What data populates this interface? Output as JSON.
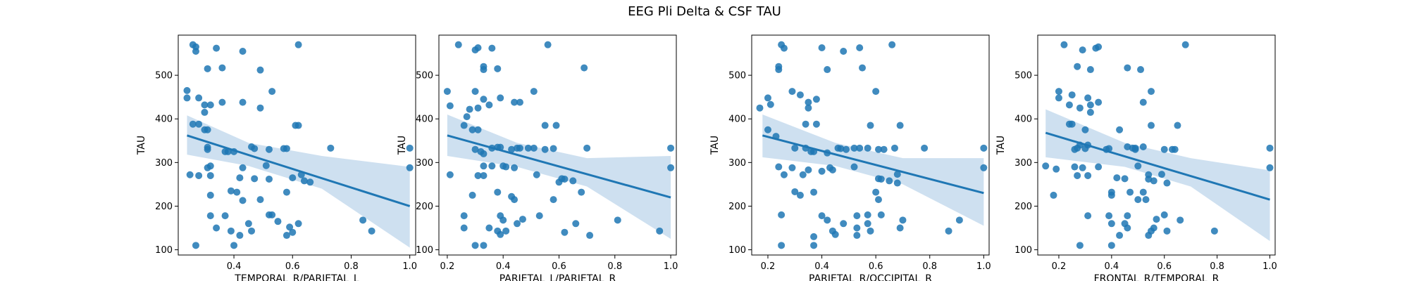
{
  "title": "EEG Pli Delta & CSF TAU",
  "colors": {
    "points": "#1f77b4",
    "line": "#1f77b4",
    "band": "#aecbe6"
  },
  "chart_data": [
    {
      "type": "scatter",
      "xlabel": "TEMPORAL_R/PARIETAL_L",
      "ylabel": "TAU",
      "xlim": [
        0.21,
        1.02
      ],
      "ylim": [
        88,
        592
      ],
      "xticks": [
        0.4,
        0.6,
        0.8,
        1.0
      ],
      "yticks": [
        100,
        200,
        300,
        400,
        500
      ],
      "regression": {
        "x": [
          0.24,
          1.0
        ],
        "y": [
          362,
          200
        ]
      },
      "ci_band": {
        "x": [
          0.24,
          0.45,
          0.7,
          1.0
        ],
        "upper": [
          408,
          345,
          315,
          290
        ],
        "lower": [
          318,
          292,
          240,
          105
        ]
      },
      "points": [
        [
          0.26,
          570
        ],
        [
          0.27,
          565
        ],
        [
          0.27,
          555
        ],
        [
          0.34,
          562
        ],
        [
          0.43,
          555
        ],
        [
          0.62,
          570
        ],
        [
          0.24,
          465
        ],
        [
          0.24,
          448
        ],
        [
          0.28,
          448
        ],
        [
          0.26,
          388
        ],
        [
          0.28,
          388
        ],
        [
          0.31,
          515
        ],
        [
          0.36,
          517
        ],
        [
          0.49,
          512
        ],
        [
          0.53,
          463
        ],
        [
          0.3,
          432
        ],
        [
          0.32,
          432
        ],
        [
          0.3,
          415
        ],
        [
          0.36,
          438
        ],
        [
          0.43,
          438
        ],
        [
          0.49,
          425
        ],
        [
          0.3,
          375
        ],
        [
          0.31,
          375
        ],
        [
          0.61,
          385
        ],
        [
          0.62,
          385
        ],
        [
          0.31,
          335
        ],
        [
          0.31,
          330
        ],
        [
          0.37,
          325
        ],
        [
          0.38,
          325
        ],
        [
          0.4,
          325
        ],
        [
          0.46,
          336
        ],
        [
          0.47,
          332
        ],
        [
          0.52,
          330
        ],
        [
          0.57,
          332
        ],
        [
          0.58,
          332
        ],
        [
          0.73,
          333
        ],
        [
          1.0,
          333
        ],
        [
          0.31,
          288
        ],
        [
          0.32,
          292
        ],
        [
          0.43,
          288
        ],
        [
          0.51,
          293
        ],
        [
          0.25,
          272
        ],
        [
          0.28,
          270
        ],
        [
          0.32,
          270
        ],
        [
          0.42,
          265
        ],
        [
          0.47,
          263
        ],
        [
          0.52,
          262
        ],
        [
          0.6,
          265
        ],
        [
          0.63,
          272
        ],
        [
          0.64,
          258
        ],
        [
          0.66,
          255
        ],
        [
          1.0,
          288
        ],
        [
          0.41,
          232
        ],
        [
          0.39,
          235
        ],
        [
          0.32,
          225
        ],
        [
          0.43,
          213
        ],
        [
          0.49,
          215
        ],
        [
          0.58,
          232
        ],
        [
          0.53,
          180
        ],
        [
          0.52,
          180
        ],
        [
          0.32,
          178
        ],
        [
          0.37,
          178
        ],
        [
          0.45,
          160
        ],
        [
          0.46,
          143
        ],
        [
          0.55,
          165
        ],
        [
          0.59,
          152
        ],
        [
          0.62,
          160
        ],
        [
          0.6,
          140
        ],
        [
          0.58,
          133
        ],
        [
          0.84,
          168
        ],
        [
          0.87,
          143
        ],
        [
          0.34,
          150
        ],
        [
          0.39,
          143
        ],
        [
          0.42,
          133
        ],
        [
          0.27,
          110
        ],
        [
          0.4,
          110
        ]
      ]
    },
    {
      "type": "scatter",
      "xlabel": "PARIETAL_L/PARIETAL_R",
      "ylabel": "TAU",
      "xlim": [
        0.17,
        1.02
      ],
      "ylim": [
        88,
        592
      ],
      "xticks": [
        0.2,
        0.4,
        0.6,
        0.8,
        1.0
      ],
      "yticks": [
        100,
        200,
        300,
        400,
        500
      ],
      "regression": {
        "x": [
          0.2,
          1.0
        ],
        "y": [
          362,
          220
        ]
      },
      "ci_band": {
        "x": [
          0.2,
          0.45,
          0.7,
          1.0
        ],
        "upper": [
          410,
          345,
          310,
          315
        ],
        "lower": [
          315,
          290,
          245,
          125
        ]
      },
      "points": [
        [
          0.24,
          570
        ],
        [
          0.3,
          558
        ],
        [
          0.31,
          563
        ],
        [
          0.36,
          562
        ],
        [
          0.56,
          570
        ],
        [
          0.33,
          520
        ],
        [
          0.33,
          513
        ],
        [
          0.38,
          515
        ],
        [
          0.69,
          517
        ],
        [
          0.2,
          463
        ],
        [
          0.3,
          463
        ],
        [
          0.51,
          463
        ],
        [
          0.21,
          430
        ],
        [
          0.28,
          422
        ],
        [
          0.31,
          425
        ],
        [
          0.33,
          445
        ],
        [
          0.35,
          432
        ],
        [
          0.39,
          448
        ],
        [
          0.44,
          438
        ],
        [
          0.46,
          438
        ],
        [
          0.27,
          405
        ],
        [
          0.26,
          385
        ],
        [
          0.29,
          375
        ],
        [
          0.31,
          375
        ],
        [
          0.55,
          385
        ],
        [
          0.59,
          385
        ],
        [
          0.3,
          330
        ],
        [
          0.32,
          325
        ],
        [
          0.33,
          320
        ],
        [
          0.36,
          333
        ],
        [
          0.38,
          335
        ],
        [
          0.39,
          335
        ],
        [
          0.43,
          330
        ],
        [
          0.45,
          333
        ],
        [
          0.46,
          333
        ],
        [
          0.49,
          333
        ],
        [
          0.51,
          333
        ],
        [
          0.55,
          330
        ],
        [
          0.58,
          332
        ],
        [
          0.7,
          333
        ],
        [
          1.0,
          333
        ],
        [
          0.33,
          292
        ],
        [
          0.36,
          292
        ],
        [
          0.4,
          292
        ],
        [
          0.41,
          290
        ],
        [
          0.44,
          288
        ],
        [
          0.52,
          272
        ],
        [
          0.61,
          263
        ],
        [
          0.62,
          262
        ],
        [
          0.6,
          255
        ],
        [
          0.65,
          258
        ],
        [
          0.21,
          272
        ],
        [
          0.31,
          270
        ],
        [
          0.33,
          270
        ],
        [
          0.29,
          225
        ],
        [
          0.38,
          232
        ],
        [
          0.43,
          222
        ],
        [
          0.44,
          215
        ],
        [
          0.58,
          215
        ],
        [
          0.68,
          232
        ],
        [
          1.0,
          288
        ],
        [
          0.26,
          178
        ],
        [
          0.39,
          178
        ],
        [
          0.4,
          168
        ],
        [
          0.47,
          170
        ],
        [
          0.53,
          178
        ],
        [
          0.81,
          168
        ],
        [
          0.26,
          150
        ],
        [
          0.35,
          150
        ],
        [
          0.45,
          160
        ],
        [
          0.66,
          160
        ],
        [
          0.38,
          143
        ],
        [
          0.39,
          135
        ],
        [
          0.41,
          143
        ],
        [
          0.62,
          140
        ],
        [
          0.71,
          133
        ],
        [
          0.96,
          143
        ],
        [
          0.3,
          110
        ],
        [
          0.33,
          110
        ]
      ]
    },
    {
      "type": "scatter",
      "xlabel": "PARIETAL_R/OCCIPITAL_R",
      "ylabel": "TAU",
      "xlim": [
        0.14,
        1.02
      ],
      "ylim": [
        88,
        592
      ],
      "xticks": [
        0.2,
        0.4,
        0.6,
        0.8,
        1.0
      ],
      "yticks": [
        100,
        200,
        300,
        400,
        500
      ],
      "regression": {
        "x": [
          0.18,
          1.0
        ],
        "y": [
          362,
          230
        ]
      },
      "ci_band": {
        "x": [
          0.18,
          0.45,
          0.7,
          1.0
        ],
        "upper": [
          410,
          345,
          310,
          310
        ],
        "lower": [
          312,
          292,
          250,
          155
        ]
      },
      "points": [
        [
          0.25,
          570
        ],
        [
          0.26,
          562
        ],
        [
          0.4,
          563
        ],
        [
          0.48,
          555
        ],
        [
          0.54,
          563
        ],
        [
          0.66,
          570
        ],
        [
          0.24,
          520
        ],
        [
          0.24,
          513
        ],
        [
          0.42,
          513
        ],
        [
          0.55,
          517
        ],
        [
          0.2,
          448
        ],
        [
          0.21,
          433
        ],
        [
          0.29,
          463
        ],
        [
          0.32,
          455
        ],
        [
          0.35,
          425
        ],
        [
          0.35,
          438
        ],
        [
          0.38,
          445
        ],
        [
          0.17,
          425
        ],
        [
          0.6,
          463
        ],
        [
          0.2,
          375
        ],
        [
          0.34,
          388
        ],
        [
          0.38,
          388
        ],
        [
          0.23,
          360
        ],
        [
          0.3,
          333
        ],
        [
          0.34,
          333
        ],
        [
          0.36,
          325
        ],
        [
          0.37,
          325
        ],
        [
          0.42,
          322
        ],
        [
          0.46,
          333
        ],
        [
          0.47,
          332
        ],
        [
          0.49,
          330
        ],
        [
          0.52,
          333
        ],
        [
          0.54,
          333
        ],
        [
          0.57,
          333
        ],
        [
          0.58,
          385
        ],
        [
          0.61,
          330
        ],
        [
          0.63,
          330
        ],
        [
          0.67,
          333
        ],
        [
          0.69,
          385
        ],
        [
          0.78,
          333
        ],
        [
          1.0,
          333
        ],
        [
          0.29,
          288
        ],
        [
          0.24,
          290
        ],
        [
          0.35,
          283
        ],
        [
          0.4,
          280
        ],
        [
          0.43,
          288
        ],
        [
          0.44,
          283
        ],
        [
          0.52,
          290
        ],
        [
          0.61,
          263
        ],
        [
          0.62,
          262
        ],
        [
          0.65,
          258
        ],
        [
          0.68,
          273
        ],
        [
          0.68,
          253
        ],
        [
          0.26,
          272
        ],
        [
          0.33,
          272
        ],
        [
          0.3,
          233
        ],
        [
          0.32,
          225
        ],
        [
          0.37,
          232
        ],
        [
          0.6,
          232
        ],
        [
          0.61,
          215
        ],
        [
          1.0,
          288
        ],
        [
          0.25,
          180
        ],
        [
          0.4,
          178
        ],
        [
          0.42,
          168
        ],
        [
          0.53,
          178
        ],
        [
          0.57,
          180
        ],
        [
          0.62,
          180
        ],
        [
          0.7,
          168
        ],
        [
          0.91,
          168
        ],
        [
          0.44,
          143
        ],
        [
          0.45,
          135
        ],
        [
          0.48,
          160
        ],
        [
          0.53,
          133
        ],
        [
          0.53,
          150
        ],
        [
          0.57,
          160
        ],
        [
          0.58,
          143
        ],
        [
          0.69,
          150
        ],
        [
          0.87,
          143
        ],
        [
          0.25,
          110
        ],
        [
          0.37,
          110
        ],
        [
          0.37,
          130
        ]
      ]
    },
    {
      "type": "scatter",
      "xlabel": "FRONTAL_R/TEMPORAL_R",
      "ylabel": "TAU",
      "xlim": [
        0.12,
        1.02
      ],
      "ylim": [
        88,
        592
      ],
      "xticks": [
        0.2,
        0.4,
        0.6,
        0.8,
        1.0
      ],
      "yticks": [
        100,
        200,
        300,
        400,
        500
      ],
      "regression": {
        "x": [
          0.15,
          1.0
        ],
        "y": [
          368,
          215
        ]
      },
      "ci_band": {
        "x": [
          0.15,
          0.45,
          0.7,
          1.0
        ],
        "upper": [
          422,
          345,
          310,
          282
        ],
        "lower": [
          312,
          290,
          245,
          120
        ]
      },
      "points": [
        [
          0.22,
          570
        ],
        [
          0.29,
          558
        ],
        [
          0.34,
          562
        ],
        [
          0.35,
          565
        ],
        [
          0.68,
          570
        ],
        [
          0.27,
          520
        ],
        [
          0.32,
          513
        ],
        [
          0.46,
          517
        ],
        [
          0.51,
          513
        ],
        [
          0.2,
          463
        ],
        [
          0.2,
          448
        ],
        [
          0.25,
          455
        ],
        [
          0.31,
          448
        ],
        [
          0.32,
          432
        ],
        [
          0.35,
          438
        ],
        [
          0.52,
          438
        ],
        [
          0.55,
          463
        ],
        [
          0.24,
          432
        ],
        [
          0.28,
          425
        ],
        [
          0.32,
          415
        ],
        [
          0.24,
          388
        ],
        [
          0.25,
          388
        ],
        [
          0.3,
          375
        ],
        [
          0.43,
          375
        ],
        [
          0.55,
          385
        ],
        [
          0.65,
          385
        ],
        [
          0.26,
          330
        ],
        [
          0.27,
          333
        ],
        [
          0.28,
          340
        ],
        [
          0.3,
          332
        ],
        [
          0.31,
          340
        ],
        [
          0.38,
          330
        ],
        [
          0.39,
          332
        ],
        [
          0.46,
          336
        ],
        [
          0.48,
          333
        ],
        [
          0.49,
          333
        ],
        [
          0.49,
          330
        ],
        [
          0.52,
          336
        ],
        [
          0.6,
          330
        ],
        [
          0.63,
          330
        ],
        [
          0.64,
          330
        ],
        [
          1.0,
          333
        ],
        [
          0.15,
          292
        ],
        [
          0.19,
          285
        ],
        [
          0.26,
          290
        ],
        [
          0.29,
          288
        ],
        [
          0.35,
          290
        ],
        [
          0.5,
          292
        ],
        [
          0.54,
          272
        ],
        [
          0.54,
          262
        ],
        [
          0.59,
          273
        ],
        [
          0.61,
          253
        ],
        [
          0.27,
          270
        ],
        [
          0.31,
          270
        ],
        [
          0.42,
          265
        ],
        [
          0.45,
          263
        ],
        [
          0.18,
          225
        ],
        [
          0.4,
          232
        ],
        [
          0.4,
          225
        ],
        [
          0.47,
          232
        ],
        [
          0.5,
          215
        ],
        [
          0.53,
          215
        ],
        [
          0.52,
          232
        ],
        [
          0.56,
          258
        ],
        [
          1.0,
          288
        ],
        [
          0.31,
          178
        ],
        [
          0.39,
          178
        ],
        [
          0.46,
          178
        ],
        [
          0.57,
          170
        ],
        [
          0.66,
          168
        ],
        [
          0.6,
          180
        ],
        [
          0.79,
          143
        ],
        [
          0.4,
          160
        ],
        [
          0.45,
          160
        ],
        [
          0.46,
          150
        ],
        [
          0.55,
          143
        ],
        [
          0.56,
          150
        ],
        [
          0.61,
          143
        ],
        [
          0.43,
          133
        ],
        [
          0.54,
          133
        ],
        [
          0.28,
          110
        ],
        [
          0.4,
          110
        ]
      ]
    }
  ]
}
